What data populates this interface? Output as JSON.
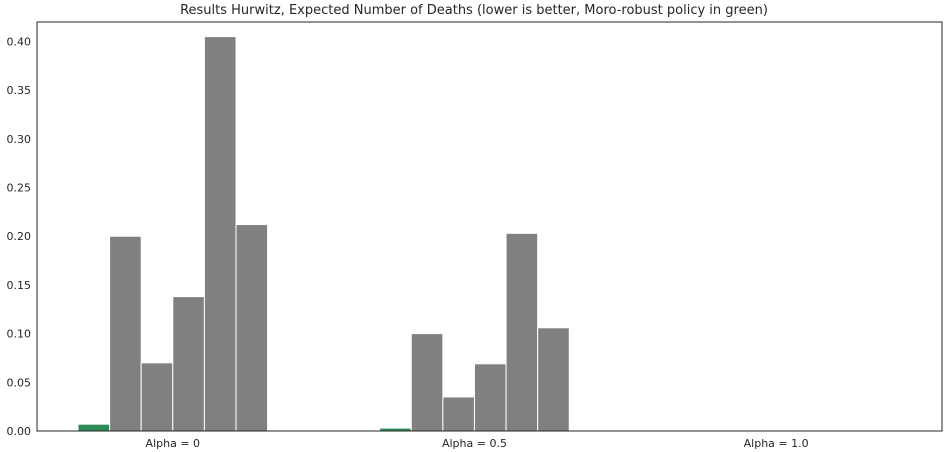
{
  "chart_data": {
    "type": "bar",
    "title": "Results Hurwitz, Expected Number of Deaths (lower is better, Moro-robust policy in green)",
    "xlabel": "",
    "ylabel": "",
    "categories": [
      "Alpha = 0",
      "Alpha = 0.5",
      "Alpha = 1.0"
    ],
    "yticks": [
      "0.00",
      "0.05",
      "0.10",
      "0.15",
      "0.20",
      "0.25",
      "0.30",
      "0.35",
      "0.40"
    ],
    "ylim": [
      0,
      0.42
    ],
    "grid": false,
    "legend": "none",
    "colors": {
      "highlight": "#2e8b57",
      "other": "#808080",
      "axis": "#262626"
    },
    "series": [
      {
        "values": [
          0.007,
          0.003,
          0.0
        ],
        "color": "#2e8b57"
      },
      {
        "values": [
          0.2,
          0.1,
          0.0
        ],
        "color": "#808080"
      },
      {
        "values": [
          0.07,
          0.035,
          0.0
        ],
        "color": "#808080"
      },
      {
        "values": [
          0.138,
          0.069,
          0.0
        ],
        "color": "#808080"
      },
      {
        "values": [
          0.405,
          0.203,
          0.0
        ],
        "color": "#808080"
      },
      {
        "values": [
          0.212,
          0.106,
          0.0
        ],
        "color": "#808080"
      }
    ]
  }
}
